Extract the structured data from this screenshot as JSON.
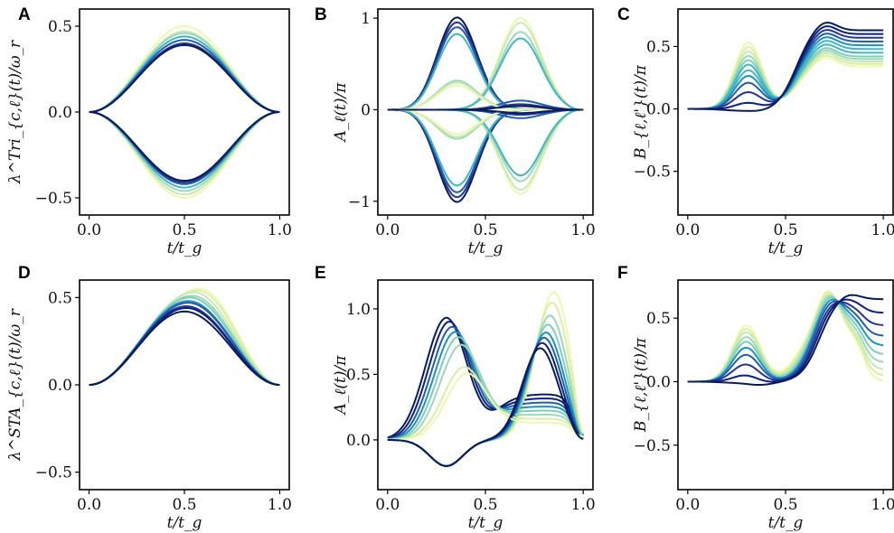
{
  "chart_data": [
    {
      "type": "line",
      "panel_label": "A",
      "xlabel": "t/t_g",
      "ylabel": "λ^Tri_{c,ℓ}(t)/ω_r",
      "xlim": [
        -0.05,
        1.05
      ],
      "ylim": [
        -0.6,
        0.6
      ],
      "xticks": [
        0.0,
        0.5,
        1.0
      ],
      "xtick_labels": [
        "0.0",
        "0.5",
        "1.0"
      ],
      "yticks": [
        -0.5,
        0.0,
        0.5
      ],
      "ytick_labels": [
        "−0.5",
        "0.0",
        "0.5"
      ],
      "series_count": 7,
      "pos_peaks_light_to_dark": [
        0.5,
        0.47,
        0.46,
        0.44,
        0.42,
        0.4,
        0.39
      ],
      "neg_peaks_light_to_dark": [
        -0.5,
        -0.48,
        -0.46,
        -0.44,
        -0.42,
        -0.41,
        -0.4
      ],
      "peak_t": 0.5
    },
    {
      "type": "line",
      "panel_label": "B",
      "xlabel": "t/t_g",
      "ylabel": "A_ℓ(t)/π",
      "xlim": [
        -0.05,
        1.05
      ],
      "ylim": [
        -1.15,
        1.1
      ],
      "xticks": [
        0.0,
        0.5,
        1.0
      ],
      "xtick_labels": [
        "0.0",
        "0.5",
        "1.0"
      ],
      "yticks": [
        -1,
        0,
        1
      ],
      "ytick_labels": [
        "−1",
        "0",
        "1"
      ],
      "series_count": 7,
      "pos_first_peaks_dark_to_light": [
        0.95,
        0.9,
        0.85,
        0.78,
        0.3,
        0.28,
        0.25
      ],
      "second_lobe_peaks_light_to_dark": [
        1.0,
        0.95,
        0.85,
        0.78,
        0.1,
        0.06,
        0.04
      ],
      "first_peak_t": 0.32,
      "second_peak_t": 0.68
    },
    {
      "type": "line",
      "panel_label": "C",
      "xlabel": "t/t_g",
      "ylabel": "B_{ℓ,ℓ'}(t)/π",
      "xlim": [
        -0.05,
        1.05
      ],
      "ylim": [
        -0.85,
        0.8
      ],
      "xticks": [
        0.0,
        0.5,
        1.0
      ],
      "xtick_labels": [
        "0.0",
        "0.5",
        "1.0"
      ],
      "yticks": [
        -0.5,
        0.0,
        0.5
      ],
      "ytick_labels": [
        "−0.5",
        "0.0",
        "0.5"
      ],
      "series_count": 12,
      "first_peaks_light_to_dark": [
        0.53,
        0.5,
        0.47,
        0.44,
        0.41,
        0.38,
        0.34,
        0.3,
        0.25,
        0.18,
        0.1,
        0.04
      ],
      "plateau_dark_to_light": [
        0.63,
        0.6,
        0.57,
        0.54,
        0.51,
        0.48,
        0.45,
        0.42,
        0.4,
        0.38,
        0.36,
        0.34
      ]
    },
    {
      "type": "line",
      "panel_label": "D",
      "xlabel": "t/t_g",
      "ylabel": "λ^STA_{c,ℓ}(t)/ω_r",
      "xlim": [
        -0.05,
        1.05
      ],
      "ylim": [
        -0.6,
        0.6
      ],
      "xticks": [
        0.0,
        0.5,
        1.0
      ],
      "xtick_labels": [
        "0.0",
        "0.5",
        "1.0"
      ],
      "yticks": [
        -0.5,
        0.0,
        0.5
      ],
      "ytick_labels": [
        "−0.5",
        "0.0",
        "0.5"
      ],
      "series_count": 10,
      "peaks_light_to_dark": [
        0.55,
        0.54,
        0.53,
        0.51,
        0.5,
        0.48,
        0.47,
        0.45,
        0.44,
        0.42
      ],
      "peak_t_light_to_dark": [
        0.58,
        0.57,
        0.55,
        0.54,
        0.53,
        0.52,
        0.52,
        0.51,
        0.51,
        0.5
      ]
    },
    {
      "type": "line",
      "panel_label": "E",
      "xlabel": "t/t_g",
      "ylabel": "A_ℓ(t)/π",
      "xlim": [
        -0.05,
        1.05
      ],
      "ylim": [
        -0.38,
        1.22
      ],
      "xticks": [
        0.0,
        0.5,
        1.0
      ],
      "xtick_labels": [
        "0.0",
        "0.5",
        "1.0"
      ],
      "yticks": [
        0.0,
        0.5,
        1.0
      ],
      "ytick_labels": [
        "0.0",
        "0.5",
        "1.0"
      ],
      "series_count": 8,
      "first_peaks_dark_to_light": [
        0.93,
        0.9,
        0.86,
        0.82,
        0.78,
        0.72,
        0.55,
        0.5
      ],
      "second_peaks_light_to_dark": [
        1.13,
        1.05,
        0.95,
        0.88,
        0.82,
        0.78,
        0.74,
        0.7
      ],
      "dip_min": -0.2
    },
    {
      "type": "line",
      "panel_label": "F",
      "xlabel": "t/t_g",
      "ylabel": "B_{ℓ,ℓ'}(t)/π",
      "xlim": [
        -0.05,
        1.05
      ],
      "ylim": [
        -0.85,
        0.8
      ],
      "xticks": [
        0.0,
        0.5,
        1.0
      ],
      "xtick_labels": [
        "0.0",
        "0.5",
        "1.0"
      ],
      "yticks": [
        -0.5,
        0.0,
        0.5
      ],
      "ytick_labels": [
        "−0.5",
        "0.0",
        "0.5"
      ],
      "series_count": 10,
      "first_peaks_light_to_dark": [
        0.44,
        0.42,
        0.4,
        0.37,
        0.34,
        0.3,
        0.25,
        0.18,
        0.1,
        0.04
      ],
      "plateau_dark_to_light": [
        0.65,
        0.61,
        0.57,
        0.54,
        0.51,
        0.48,
        0.45,
        0.42,
        0.4,
        0.38
      ]
    }
  ],
  "colors": {
    "palette_light_to_dark": [
      "#edf8b1",
      "#d9f0a3",
      "#c7e9b4",
      "#9fd8b7",
      "#7fcdbb",
      "#41b6c4",
      "#1d91c0",
      "#225ea8",
      "#253494",
      "#0c1f80",
      "#081d58"
    ]
  }
}
